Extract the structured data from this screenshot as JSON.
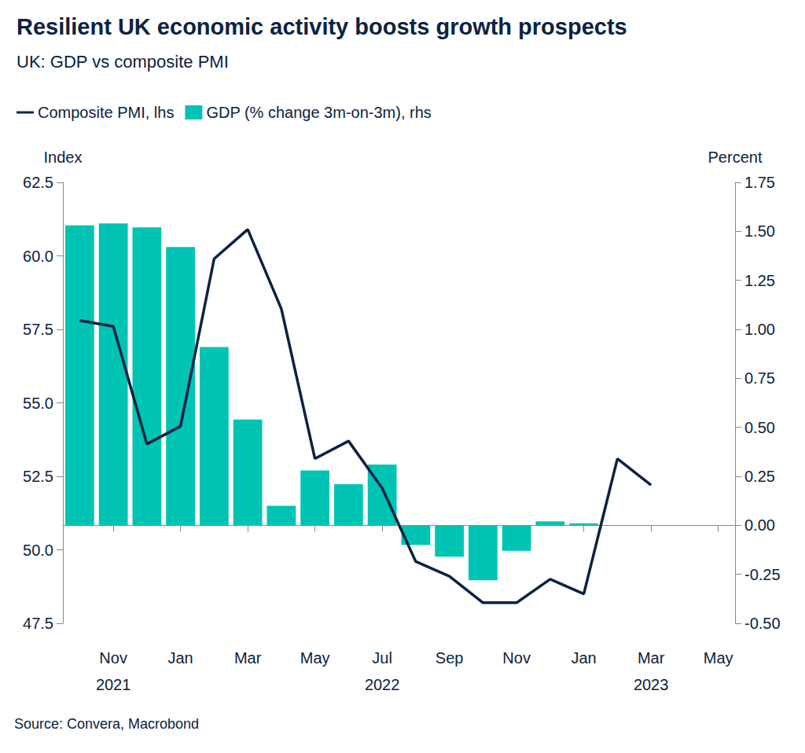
{
  "chart_data": {
    "type": "bar",
    "title": "Resilient UK economic activity boosts growth prospects",
    "subtitle": "UK: GDP vs composite PMI",
    "source": "Source: Convera, Macrobond",
    "ylabel": "Index",
    "y2label": "Percent",
    "categories": [
      null,
      "Nov\n2021",
      null,
      "Jan",
      null,
      "Mar",
      null,
      "May",
      null,
      "Jul\n2022",
      null,
      "Sep",
      null,
      "Nov",
      null,
      "Jan",
      null,
      "Mar\n2023",
      null,
      "May"
    ],
    "series": [
      {
        "name": "Composite PMI, lhs",
        "type": "line",
        "color": "#0b2341",
        "values": [
          57.8,
          57.6,
          53.6,
          54.2,
          59.9,
          60.9,
          58.2,
          53.1,
          53.7,
          52.1,
          49.6,
          49.1,
          48.2,
          48.2,
          49.0,
          48.5,
          53.1,
          52.2,
          null,
          null
        ]
      },
      {
        "name": "GDP (% change 3m-on-3m), rhs",
        "type": "bar",
        "color": "#00c4b3",
        "axis": "y2",
        "values": [
          1.53,
          1.54,
          1.52,
          1.42,
          0.91,
          0.54,
          0.1,
          0.28,
          0.21,
          0.31,
          -0.1,
          -0.16,
          -0.28,
          -0.13,
          0.02,
          0.01,
          null,
          null,
          null,
          null
        ]
      }
    ],
    "ylim": [
      47.5,
      62.5
    ],
    "yticks": [
      47.5,
      {
        "value": 50,
        "label": "50.0"
      },
      52.5,
      {
        "value": 55,
        "label": "55.0"
      },
      57.5,
      {
        "value": 60,
        "label": "60.0"
      },
      62.5
    ],
    "y2lim": [
      -0.5,
      1.75
    ],
    "y2ticks": [
      {
        "value": -0.5,
        "label": "-0.50"
      },
      -0.25,
      {
        "value": 0,
        "label": "0.00"
      },
      0.25,
      {
        "value": 0.5,
        "label": "0.50"
      },
      0.75,
      {
        "value": 1,
        "label": "1.00"
      },
      1.25,
      {
        "value": 1.5,
        "label": "1.50"
      },
      1.75
    ],
    "legend": "top",
    "grid": false
  }
}
